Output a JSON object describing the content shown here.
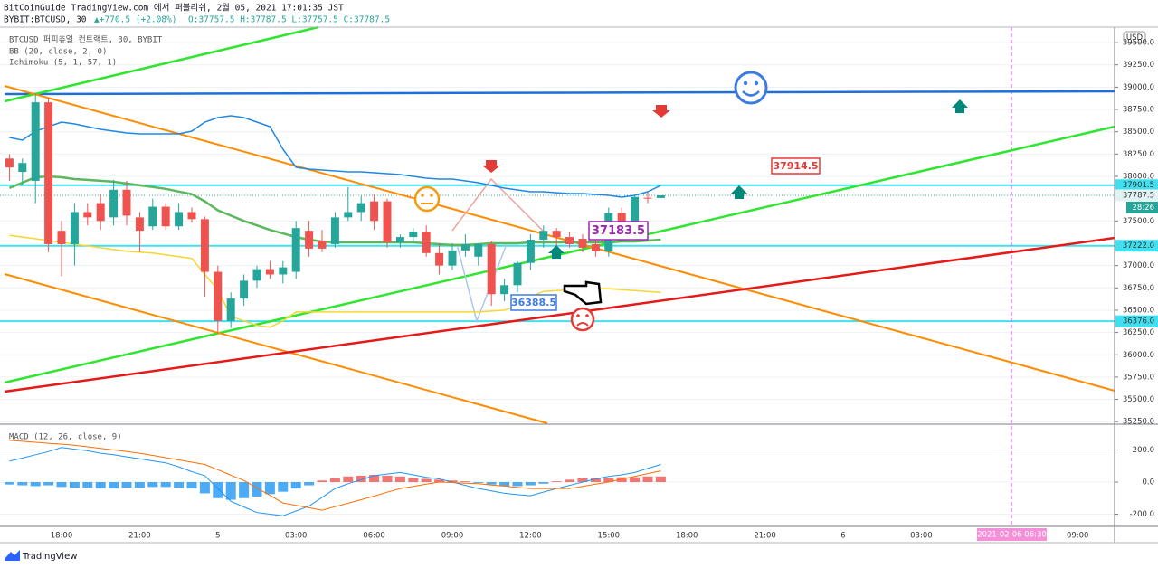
{
  "header": {
    "title": "BitCoinGuide TradingView.com 에서 퍼블리쉬, 2월 05, 2021 17:01:35 JST",
    "symbol": "BYBIT:BTCUSD, 30",
    "change": "▲+770.5 (+2.08%)",
    "ohlc": "O:37757.5 H:37787.5 L:37757.5 C:37787.5"
  },
  "currency": "USD",
  "cursor_label": "2021-02-06  06:30",
  "countdown": "28:26",
  "annotations": [
    "37914.5",
    "37183.5",
    "36388.5"
  ],
  "footer": {
    "brand": "TradingView"
  },
  "chart_data": [
    {
      "type": "candlestick",
      "title": "BTCUSD 퍼피츄얼 컨트랙트, 30, BYBIT",
      "categories": [
        null,
        null,
        null,
        null,
        "18:00",
        null,
        null,
        null,
        null,
        null,
        "21:00",
        null,
        null,
        null,
        null,
        null,
        "5",
        null,
        null,
        null,
        null,
        null,
        "03:00",
        null,
        null,
        null,
        null,
        null,
        "06:00",
        null,
        null,
        null,
        null,
        null,
        "09:00",
        null,
        null,
        null,
        null,
        null,
        "12:00",
        null,
        null,
        null,
        null,
        null,
        "15:00",
        null,
        null,
        null,
        null,
        null,
        "18:00",
        null,
        null,
        null,
        null,
        null,
        "21:00",
        null,
        null,
        null,
        null,
        null,
        "6",
        null,
        null,
        null,
        null,
        null,
        "03:00",
        null,
        null,
        null,
        null,
        null,
        null,
        null,
        null,
        null,
        null,
        null,
        "09:00",
        null,
        null
      ],
      "open": [
        38200,
        38050,
        37950,
        38830,
        37390,
        37240,
        37600,
        37700,
        37540,
        37850,
        37540,
        37440,
        37660,
        37440,
        37600,
        37520,
        36930,
        36380,
        36630,
        36830,
        36960,
        36900,
        36930,
        37390,
        37280,
        37240,
        37540,
        37600,
        37720,
        37720,
        37260,
        37320,
        37380,
        37140,
        37000,
        37170,
        37100,
        37240,
        36680,
        36780,
        37030,
        37290,
        37390,
        37320,
        37300,
        37240,
        37160,
        37590,
        37490,
        37760,
        37757.5,
        null,
        null,
        null,
        null,
        null,
        null,
        null,
        null,
        null,
        null,
        null,
        null,
        null,
        null,
        null,
        null,
        null,
        null,
        null,
        null,
        null,
        null,
        null,
        null,
        null,
        null,
        null,
        null,
        null,
        null,
        null,
        null,
        null,
        null
      ],
      "high": [
        38250,
        38200,
        38930,
        38880,
        37500,
        37700,
        37700,
        37800,
        37960,
        37950,
        37600,
        37750,
        37700,
        37700,
        37650,
        37550,
        37000,
        36700,
        36900,
        37000,
        37050,
        37050,
        37500,
        37500,
        37400,
        37600,
        37880,
        37780,
        37800,
        37750,
        37350,
        37420,
        37450,
        37250,
        37250,
        37350,
        37250,
        37280,
        36850,
        37050,
        37350,
        37450,
        37420,
        37380,
        37350,
        37300,
        37650,
        37650,
        37800,
        37820,
        37787.5,
        null,
        null,
        null,
        null,
        null,
        null,
        null,
        null,
        null,
        null,
        null,
        null,
        null,
        null,
        null,
        null,
        null,
        null,
        null,
        null,
        null,
        null,
        null,
        null,
        null,
        null,
        null,
        null,
        null,
        null,
        null,
        null,
        null,
        null
      ],
      "low": [
        37950,
        37900,
        37700,
        37150,
        36880,
        37000,
        37450,
        37400,
        37450,
        37450,
        37150,
        37400,
        37400,
        37400,
        37480,
        36650,
        36250,
        36300,
        36550,
        36750,
        36850,
        36800,
        36850,
        37100,
        37150,
        37200,
        37500,
        37500,
        37400,
        37200,
        37200,
        37250,
        37100,
        36900,
        36950,
        37100,
        37000,
        36550,
        36600,
        36700,
        36950,
        37200,
        37200,
        37200,
        37150,
        37100,
        37100,
        37450,
        37450,
        37700,
        37757.5,
        null,
        null,
        null,
        null,
        null,
        null,
        null,
        null,
        null,
        null,
        null,
        null,
        null,
        null,
        null,
        null,
        null,
        null,
        null,
        null,
        null,
        null,
        null,
        null,
        null,
        null,
        null,
        null,
        null,
        null,
        null,
        null,
        null,
        null
      ],
      "close": [
        38100,
        38150,
        38830,
        37240,
        37240,
        37600,
        37540,
        37500,
        37850,
        37560,
        37390,
        37660,
        37440,
        37600,
        37520,
        36930,
        36380,
        36630,
        36830,
        36960,
        36900,
        36980,
        37420,
        37190,
        37190,
        37540,
        37600,
        37700,
        37500,
        37260,
        37320,
        37380,
        37140,
        37000,
        37170,
        37240,
        37240,
        36680,
        36780,
        37030,
        37290,
        37390,
        37320,
        37240,
        37200,
        37160,
        37590,
        37490,
        37770,
        37757.5,
        37787.5,
        null,
        null,
        null,
        null,
        null,
        null,
        null,
        null,
        null,
        null,
        null,
        null,
        null,
        null,
        null,
        null,
        null,
        null,
        null,
        null,
        null,
        null,
        null,
        null,
        null,
        null,
        null,
        null,
        null,
        null,
        null,
        null,
        null,
        null
      ],
      "up_color": "#26a69a",
      "down_color": "#ef5350",
      "indicators": [
        {
          "name": "BB (20, close, 2, 0)",
          "lines": [
            {
              "color": "#1e88e5",
              "values": [
                38436,
                38406,
                38507,
                38558,
                38608,
                38588,
                38558,
                38527,
                38507,
                38487,
                38477,
                38477,
                38477,
                38477,
                38507,
                38608,
                38659,
                38679,
                38659,
                38608,
                38558,
                38304,
                38101,
                38081,
                38071,
                38061,
                38051,
                38051,
                38041,
                38030,
                38020,
                38000,
                37980,
                37970,
                37970,
                37949,
                37929,
                37899,
                37868,
                37848,
                37828,
                37828,
                37817,
                37807,
                37807,
                37797,
                37787,
                37767,
                37787,
                37828,
                37899,
                null,
                null,
                null,
                null,
                null,
                null,
                null,
                null,
                null,
                null,
                null,
                null,
                null,
                null,
                null,
                null,
                null,
                null,
                null,
                null,
                null,
                null,
                null,
                null,
                null,
                null,
                null,
                null,
                null,
                null,
                null,
                null,
                null,
                null
              ]
            },
            {
              "color": "#5cb85c",
              "values": [
                37870,
                37930,
                37990,
                38000,
                37990,
                37970,
                37960,
                37950,
                37940,
                37920,
                37900,
                37880,
                37860,
                37830,
                37800,
                37720,
                37620,
                37560,
                37500,
                37450,
                37400,
                37360,
                37320,
                37290,
                37270,
                37260,
                37260,
                37260,
                37260,
                37260,
                37260,
                37260,
                37250,
                37240,
                37230,
                37230,
                37240,
                37250,
                37250,
                37250,
                37260,
                37260,
                37260,
                37260,
                37260,
                37260,
                37260,
                37270,
                37270,
                37280,
                37290,
                null,
                null,
                null,
                null,
                null,
                null,
                null,
                null,
                null,
                null,
                null,
                null,
                null,
                null,
                null,
                null,
                null,
                null,
                null,
                null,
                null,
                null,
                null,
                null,
                null,
                null,
                null,
                null,
                null,
                null,
                null,
                null,
                null,
                null
              ]
            },
            {
              "color": "#f5d731",
              "values": [
                37340,
                37320,
                37300,
                37280,
                37260,
                37240,
                37220,
                37200,
                37180,
                37160,
                37150,
                37140,
                37120,
                37100,
                37080,
                36900,
                36730,
                36430,
                36380,
                36330,
                36310,
                36380,
                36480,
                36480,
                36480,
                36480,
                36480,
                36480,
                36480,
                36480,
                36480,
                36480,
                36480,
                36480,
                36480,
                36480,
                36480,
                36490,
                36500,
                36550,
                36650,
                36710,
                36720,
                36730,
                36730,
                36740,
                36740,
                36730,
                36720,
                36710,
                36700,
                null,
                null,
                null,
                null,
                null,
                null,
                null,
                null,
                null,
                null,
                null,
                null,
                null,
                null,
                null,
                null,
                null,
                null,
                null,
                null,
                null,
                null,
                null,
                null,
                null,
                null,
                null,
                null,
                null,
                null,
                null,
                null,
                null,
                null
              ]
            }
          ]
        },
        {
          "name": "Ichimoku (5, 1, 57, 1)"
        }
      ],
      "levels": [
        {
          "value": 37901.5,
          "label": "37901.5",
          "color": "#40e0f0"
        },
        {
          "value": 37222,
          "label": "37222.0",
          "color": "#40e0f0"
        },
        {
          "value": 36376,
          "label": "36376.0",
          "color": "#40e0f0"
        }
      ],
      "ylim": [
        35232,
        39673
      ],
      "yticks": [
        {
          "value": 35250,
          "label": "35250.0"
        },
        {
          "value": 35500,
          "label": "35500.0"
        },
        {
          "value": 35750,
          "label": "35750.0"
        },
        {
          "value": 36000,
          "label": "36000.0"
        },
        {
          "value": 36250,
          "label": "36250.0"
        },
        {
          "value": 36500,
          "label": "36500.0"
        },
        {
          "value": 36750,
          "label": "36750.0"
        },
        {
          "value": 37000,
          "label": "37000.0"
        },
        {
          "value": 37500,
          "label": "37500.0"
        },
        {
          "value": 38000,
          "label": "38000.0"
        },
        {
          "value": 38250,
          "label": "38250.0"
        },
        {
          "value": 38500,
          "label": "38500.0"
        },
        {
          "value": 38750,
          "label": "38750.0"
        },
        {
          "value": 39000,
          "label": "39000.0"
        },
        {
          "value": 39250,
          "label": "39250.0"
        },
        {
          "value": 39500,
          "label": "39500.0"
        }
      ],
      "grid": true
    },
    {
      "type": "macd",
      "title": "MACD (12, 26, close, 9)",
      "histogram": {
        "positive_color": "#ef5350",
        "negative_color": "#2196f3",
        "values": [
          -15,
          -20,
          -25,
          -20,
          -30,
          -35,
          -35,
          -40,
          -40,
          -35,
          -35,
          -30,
          -30,
          -35,
          -40,
          -70,
          -100,
          -110,
          -100,
          -90,
          -75,
          -60,
          -40,
          -20,
          10,
          25,
          35,
          40,
          45,
          40,
          35,
          25,
          20,
          15,
          10,
          5,
          -5,
          -15,
          -25,
          -25,
          -20,
          -10,
          5,
          15,
          25,
          25,
          25,
          30,
          30,
          35,
          35
        ]
      },
      "series": [
        {
          "color": "#2196f3",
          "values": [
            130,
            150,
            170,
            190,
            215,
            205,
            195,
            180,
            170,
            157,
            145,
            132,
            120,
            95,
            65,
            40,
            -40,
            -120,
            -155,
            -190,
            -200,
            -210,
            -180,
            -150,
            -95,
            -40,
            -10,
            15,
            40,
            50,
            60,
            45,
            30,
            20,
            0,
            -20,
            -40,
            -55,
            -70,
            -78,
            -85,
            -62,
            -40,
            -20,
            0,
            20,
            35,
            45,
            60,
            85,
            110
          ]
        },
        {
          "color": "#ff6d00",
          "values": [
            260,
            254,
            248,
            242,
            236,
            230,
            220,
            210,
            200,
            190,
            180,
            166,
            152,
            138,
            124,
            110,
            77,
            43,
            10,
            -37,
            -83,
            -130,
            -145,
            -160,
            -175,
            -153,
            -132,
            -110,
            -87,
            -63,
            -40,
            -27,
            -13,
            0,
            -3,
            -7,
            -10,
            -18,
            -25,
            -33,
            -40,
            -40,
            -40,
            -40,
            -27,
            -13,
            0,
            18,
            35,
            53,
            70
          ]
        }
      ],
      "ylim": [
        -276,
        355
      ],
      "yticks": [
        {
          "value": 200,
          "label": "200.0"
        },
        {
          "value": 0,
          "label": "0.0"
        },
        {
          "value": -200,
          "label": "-200.0"
        }
      ],
      "grid": true
    }
  ]
}
